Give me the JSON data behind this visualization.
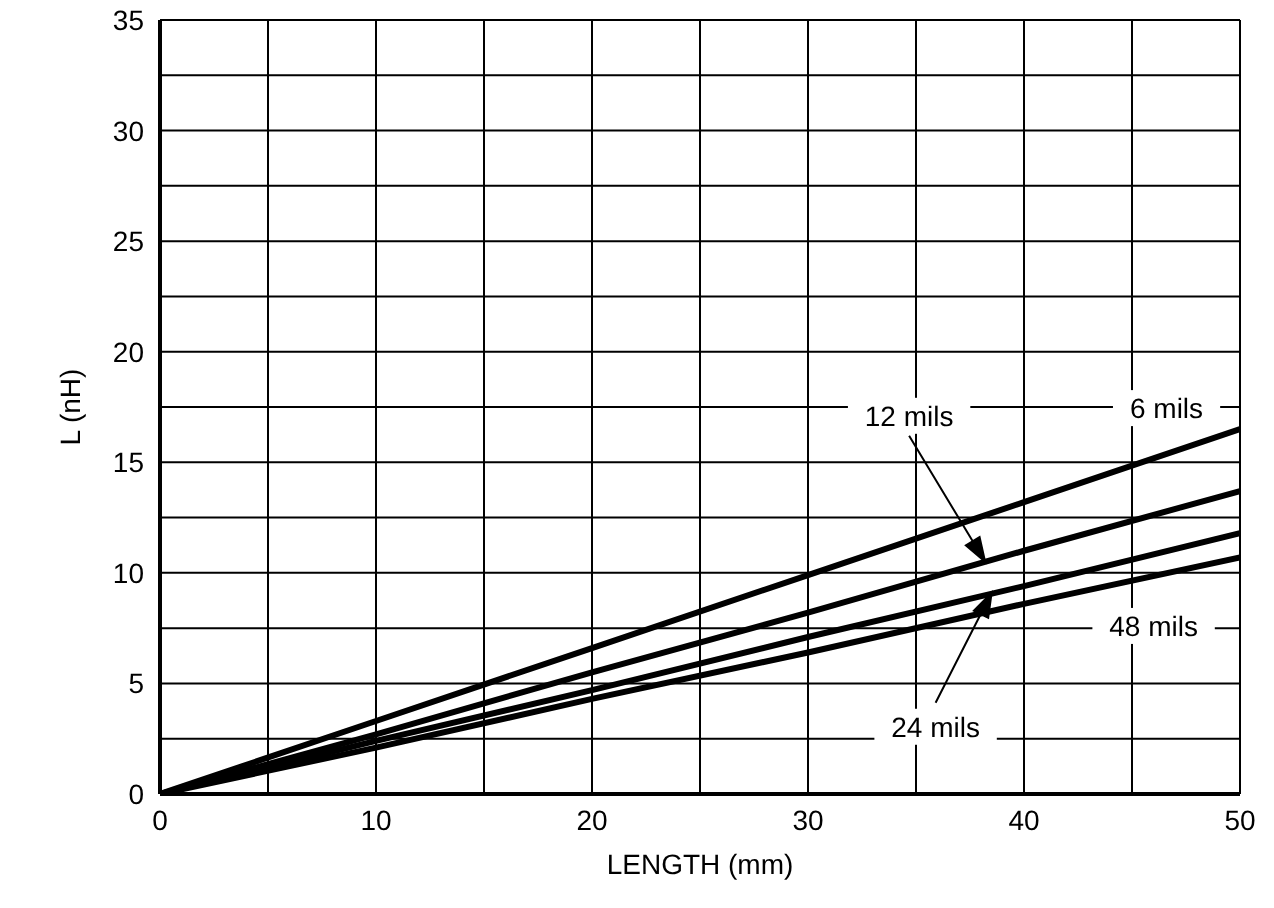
{
  "chart_data": {
    "type": "line",
    "xlabel": "LENGTH (mm)",
    "ylabel": "L (nH)",
    "x": [
      0,
      10,
      20,
      30,
      40,
      50
    ],
    "series": [
      {
        "color": "#000000",
        "values": [
          0,
          3.3,
          6.6,
          9.9,
          13.2,
          16.5
        ]
      },
      {
        "color": "#000000",
        "values": [
          0,
          2.7,
          5.5,
          8.2,
          11,
          13.7
        ]
      },
      {
        "color": "#000000",
        "values": [
          0,
          2.4,
          4.7,
          7.1,
          9.4,
          11.8
        ]
      },
      {
        "color": "#000000",
        "values": [
          0,
          2.1,
          4.3,
          6.4,
          8.6,
          10.7
        ]
      }
    ],
    "annotations": [
      {
        "text": "12 mils",
        "x": 38.2,
        "y": 10.5
      },
      "6 mils",
      "48 mils",
      {
        "text": "24 mils",
        "x": 38.5,
        "y": 9.1
      }
    ],
    "xlim": [
      0,
      50
    ],
    "ylim": [
      0,
      35
    ],
    "xticks": [
      0,
      {
        "value": 5,
        "label": null
      },
      10,
      {
        "value": 15,
        "label": null
      },
      20,
      {
        "value": 25,
        "label": null
      },
      30,
      {
        "value": 35,
        "label": null
      },
      40,
      {
        "value": 45,
        "label": null
      },
      50
    ],
    "yticks": [
      0,
      {
        "value": 2.5,
        "label": null
      },
      5,
      {
        "value": 7.5,
        "label": null
      },
      10,
      {
        "value": 12.5,
        "label": null
      },
      15,
      {
        "value": 17.5,
        "label": null
      },
      20,
      {
        "value": 22.5,
        "label": null
      },
      25,
      {
        "value": 27.5,
        "label": null
      },
      30,
      {
        "value": 32.5,
        "label": null
      },
      35
    ],
    "grid": true,
    "legend": false,
    "marker": "none",
    "line_style": "solid"
  }
}
